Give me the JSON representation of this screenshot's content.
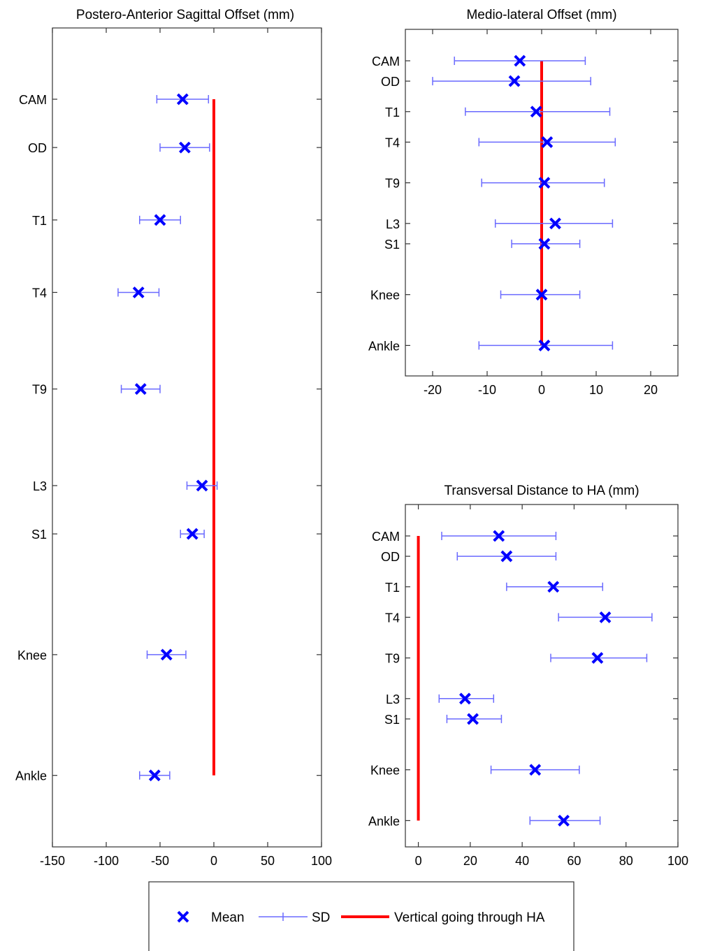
{
  "chart_data": [
    {
      "type": "scatter",
      "title": "Postero-Anterior Sagittal Offset (mm)",
      "xlabel": "",
      "ylabel": "",
      "xlim": [
        -150,
        100
      ],
      "xticks": [
        -150,
        -100,
        -50,
        0,
        50,
        100
      ],
      "xtick_labels": [
        "-150",
        "-100",
        "-50",
        "0",
        "50",
        "100"
      ],
      "ylim": [
        -0.5,
        16
      ],
      "categories": [
        "CAM",
        "OD",
        "T1",
        "T4",
        "T9",
        "L3",
        "S1",
        "Knee",
        "Ankle"
      ],
      "y": [
        0,
        1.2,
        3,
        4.8,
        7.2,
        9.6,
        10.8,
        13.8,
        16.8
      ],
      "mean": [
        -29,
        -27,
        -50,
        -70,
        -68,
        -11,
        -20,
        -44,
        -55
      ],
      "sd_low": [
        -53,
        -50,
        -69,
        -89,
        -86,
        -25,
        -31,
        -62,
        -69
      ],
      "sd_high": [
        -5,
        -4,
        -31,
        -51,
        -50,
        3,
        -9,
        -26,
        -41
      ],
      "reference_line": {
        "x": 0,
        "y_from": 0,
        "y_to": 16.8
      }
    },
    {
      "type": "scatter",
      "title": "Medio-lateral Offset (mm)",
      "xlabel": "",
      "ylabel": "",
      "xlim": [
        -25,
        25
      ],
      "xticks": [
        -20,
        -10,
        0,
        10,
        20
      ],
      "xtick_labels": [
        "-20",
        "-10",
        "0",
        "10",
        "20"
      ],
      "categories": [
        "CAM",
        "OD",
        "T1",
        "T4",
        "T9",
        "L3",
        "S1",
        "Knee",
        "Ankle"
      ],
      "y": [
        0,
        0.6,
        1.5,
        2.4,
        3.6,
        4.8,
        5.4,
        6.9,
        8.4
      ],
      "mean": [
        -4,
        -5,
        -1,
        1,
        0.5,
        2.5,
        0.5,
        0,
        0.5
      ],
      "sd_low": [
        -16,
        -20,
        -14,
        -11.5,
        -11,
        -8.5,
        -5.5,
        -7.5,
        -11.5
      ],
      "sd_high": [
        8,
        9,
        12.5,
        13.5,
        11.5,
        13,
        7,
        7,
        13
      ],
      "reference_line": {
        "x": 0,
        "y_from": 0,
        "y_to": 8.4
      }
    },
    {
      "type": "scatter",
      "title": "Transversal Distance to HA (mm)",
      "xlabel": "",
      "ylabel": "",
      "xlim": [
        -5,
        100
      ],
      "xticks": [
        0,
        20,
        40,
        60,
        80,
        100
      ],
      "xtick_labels": [
        "0",
        "20",
        "40",
        "60",
        "80",
        "100"
      ],
      "categories": [
        "CAM",
        "OD",
        "T1",
        "T4",
        "T9",
        "L3",
        "S1",
        "Knee",
        "Ankle"
      ],
      "y": [
        0,
        0.6,
        1.5,
        2.4,
        3.6,
        4.8,
        5.4,
        6.9,
        8.4
      ],
      "mean": [
        31,
        34,
        52,
        72,
        69,
        18,
        21,
        45,
        56
      ],
      "sd_low": [
        9,
        15,
        34,
        54,
        51,
        8,
        11,
        28,
        43
      ],
      "sd_high": [
        53,
        53,
        71,
        90,
        88,
        29,
        32,
        62,
        70
      ],
      "reference_line": {
        "x": 0,
        "y_from": 0,
        "y_to": 8.4
      }
    }
  ],
  "legend": {
    "items": [
      {
        "label": "Mean",
        "marker": "x",
        "color": "#0000ff"
      },
      {
        "label": "SD",
        "marker": "errorbar",
        "color": "#5a5aff"
      },
      {
        "label": "Vertical going through HA",
        "marker": "line",
        "color": "#ff0000"
      }
    ]
  },
  "colors": {
    "mean": "#0000ff",
    "sd": "#6a6aff",
    "reference": "#ff0000",
    "axes": "#333333"
  }
}
